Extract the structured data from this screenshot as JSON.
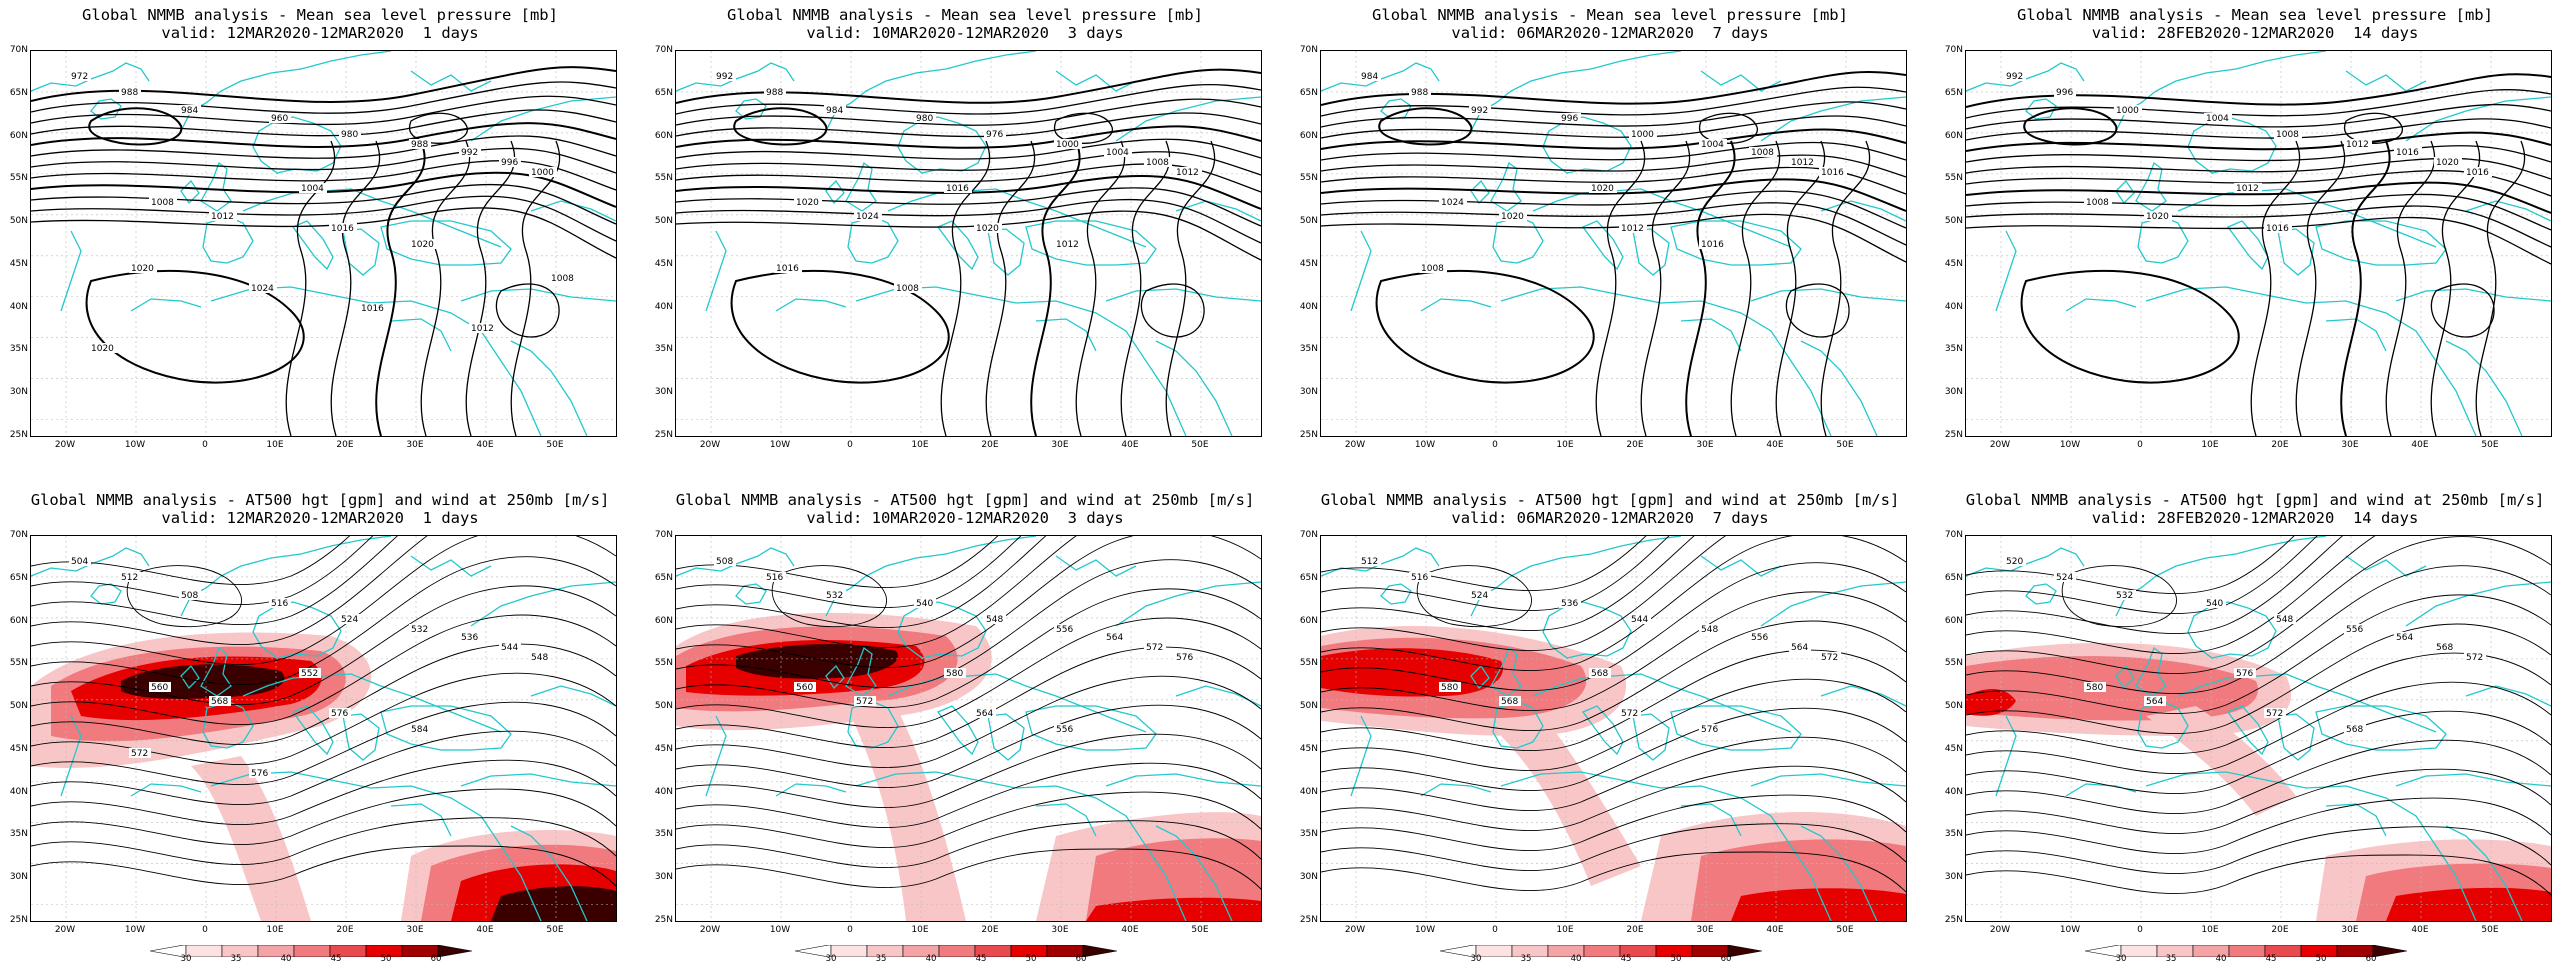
{
  "colors": {
    "contour": "#000000",
    "coastline": "#22c8cc",
    "jet_light": "#f9c6c8",
    "jet_mid": "#f07a7e",
    "jet_strong": "#e60000",
    "jet_max": "#3a0000"
  },
  "lat_labels": [
    "70N",
    "65N",
    "60N",
    "55N",
    "50N",
    "45N",
    "40N",
    "35N",
    "30N",
    "25N"
  ],
  "lon_labels": [
    "20W",
    "10W",
    "0",
    "10E",
    "20E",
    "30E",
    "40E",
    "50E"
  ],
  "colorbar_ticks": [
    "30",
    "35",
    "40",
    "45",
    "50",
    "60"
  ],
  "panels": [
    {
      "title1": "Global NMMB analysis - Mean sea level pressure [mb]",
      "title2": "valid: 12MAR2020-12MAR2020  1 days",
      "labels": [
        "972",
        "988",
        "984",
        "960",
        "980",
        "988",
        "992",
        "996",
        "1000",
        "1004",
        "1008",
        "1012",
        "1016",
        "1020",
        "1020",
        "1024",
        "1016",
        "1012",
        "1008",
        "1020"
      ]
    },
    {
      "title1": "Global NMMB analysis - Mean sea level pressure [mb]",
      "title2": "valid: 10MAR2020-12MAR2020  3 days",
      "labels": [
        "992",
        "988",
        "984",
        "980",
        "976",
        "1000",
        "1004",
        "1008",
        "1012",
        "1016",
        "1020",
        "1024",
        "1020",
        "1012",
        "1016",
        "1008"
      ]
    },
    {
      "title1": "Global NMMB analysis - Mean sea level pressure [mb]",
      "title2": "valid: 06MAR2020-12MAR2020  7 days",
      "labels": [
        "984",
        "988",
        "992",
        "996",
        "1000",
        "1004",
        "1008",
        "1012",
        "1016",
        "1020",
        "1024",
        "1020",
        "1012",
        "1016",
        "1008"
      ]
    },
    {
      "title1": "Global NMMB analysis - Mean sea level pressure [mb]",
      "title2": "valid: 28FEB2020-12MAR2020  14 days",
      "labels": [
        "992",
        "996",
        "1000",
        "1004",
        "1008",
        "1012",
        "1016",
        "1020",
        "1016",
        "1012",
        "1008",
        "1020",
        "1016"
      ]
    },
    {
      "title1": "Global NMMB analysis - AT500 hgt [gpm] and wind at 250mb [m/s]",
      "title2": "valid: 12MAR2020-12MAR2020  1 days",
      "labels": [
        "504",
        "512",
        "508",
        "516",
        "524",
        "532",
        "536",
        "544",
        "548",
        "552",
        "560",
        "568",
        "576",
        "584",
        "572",
        "576"
      ]
    },
    {
      "title1": "Global NMMB analysis - AT500 hgt [gpm] and wind at 250mb [m/s]",
      "title2": "valid: 10MAR2020-12MAR2020  3 days",
      "labels": [
        "508",
        "516",
        "532",
        "540",
        "548",
        "556",
        "564",
        "572",
        "576",
        "580",
        "560",
        "572",
        "564",
        "556"
      ]
    },
    {
      "title1": "Global NMMB analysis - AT500 hgt [gpm] and wind at 250mb [m/s]",
      "title2": "valid: 06MAR2020-12MAR2020  7 days",
      "labels": [
        "512",
        "516",
        "524",
        "536",
        "544",
        "548",
        "556",
        "564",
        "572",
        "568",
        "580",
        "568",
        "572",
        "576"
      ]
    },
    {
      "title1": "Global NMMB analysis - AT500 hgt [gpm] and wind at 250mb [m/s]",
      "title2": "valid: 28FEB2020-12MAR2020  14 days",
      "labels": [
        "520",
        "524",
        "532",
        "540",
        "548",
        "556",
        "564",
        "568",
        "572",
        "576",
        "580",
        "564",
        "572",
        "568"
      ]
    }
  ]
}
